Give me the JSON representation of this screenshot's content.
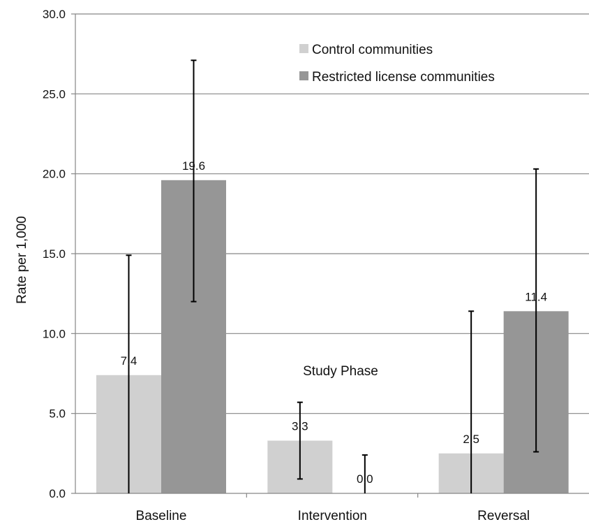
{
  "chart_data": {
    "type": "bar",
    "title": "",
    "xlabel": "Study Phase",
    "ylabel": "Rate per 1,000",
    "ylim": [
      0,
      30
    ],
    "y_ticks": [
      "0.0",
      "5.0",
      "10.0",
      "15.0",
      "20.0",
      "25.0",
      "30.0"
    ],
    "categories": [
      "Baseline",
      "Intervention",
      "Reversal"
    ],
    "series": [
      {
        "name": "Control communities",
        "color": "#d0d0d0",
        "values": [
          7.4,
          3.3,
          2.5
        ],
        "labels": [
          "7.4",
          "3.3",
          "2.5"
        ],
        "error_low": [
          0,
          0.9,
          0
        ],
        "error_high": [
          14.9,
          5.7,
          11.4
        ]
      },
      {
        "name": "Restricted license communities",
        "color": "#969696",
        "values": [
          19.6,
          0.0,
          11.4
        ],
        "labels": [
          "19.6",
          "0.0",
          "11.4"
        ],
        "error_low": [
          12.0,
          0,
          2.6
        ],
        "error_high": [
          27.1,
          2.4,
          20.3
        ]
      }
    ],
    "grid": true,
    "legend_position": "top-right"
  }
}
